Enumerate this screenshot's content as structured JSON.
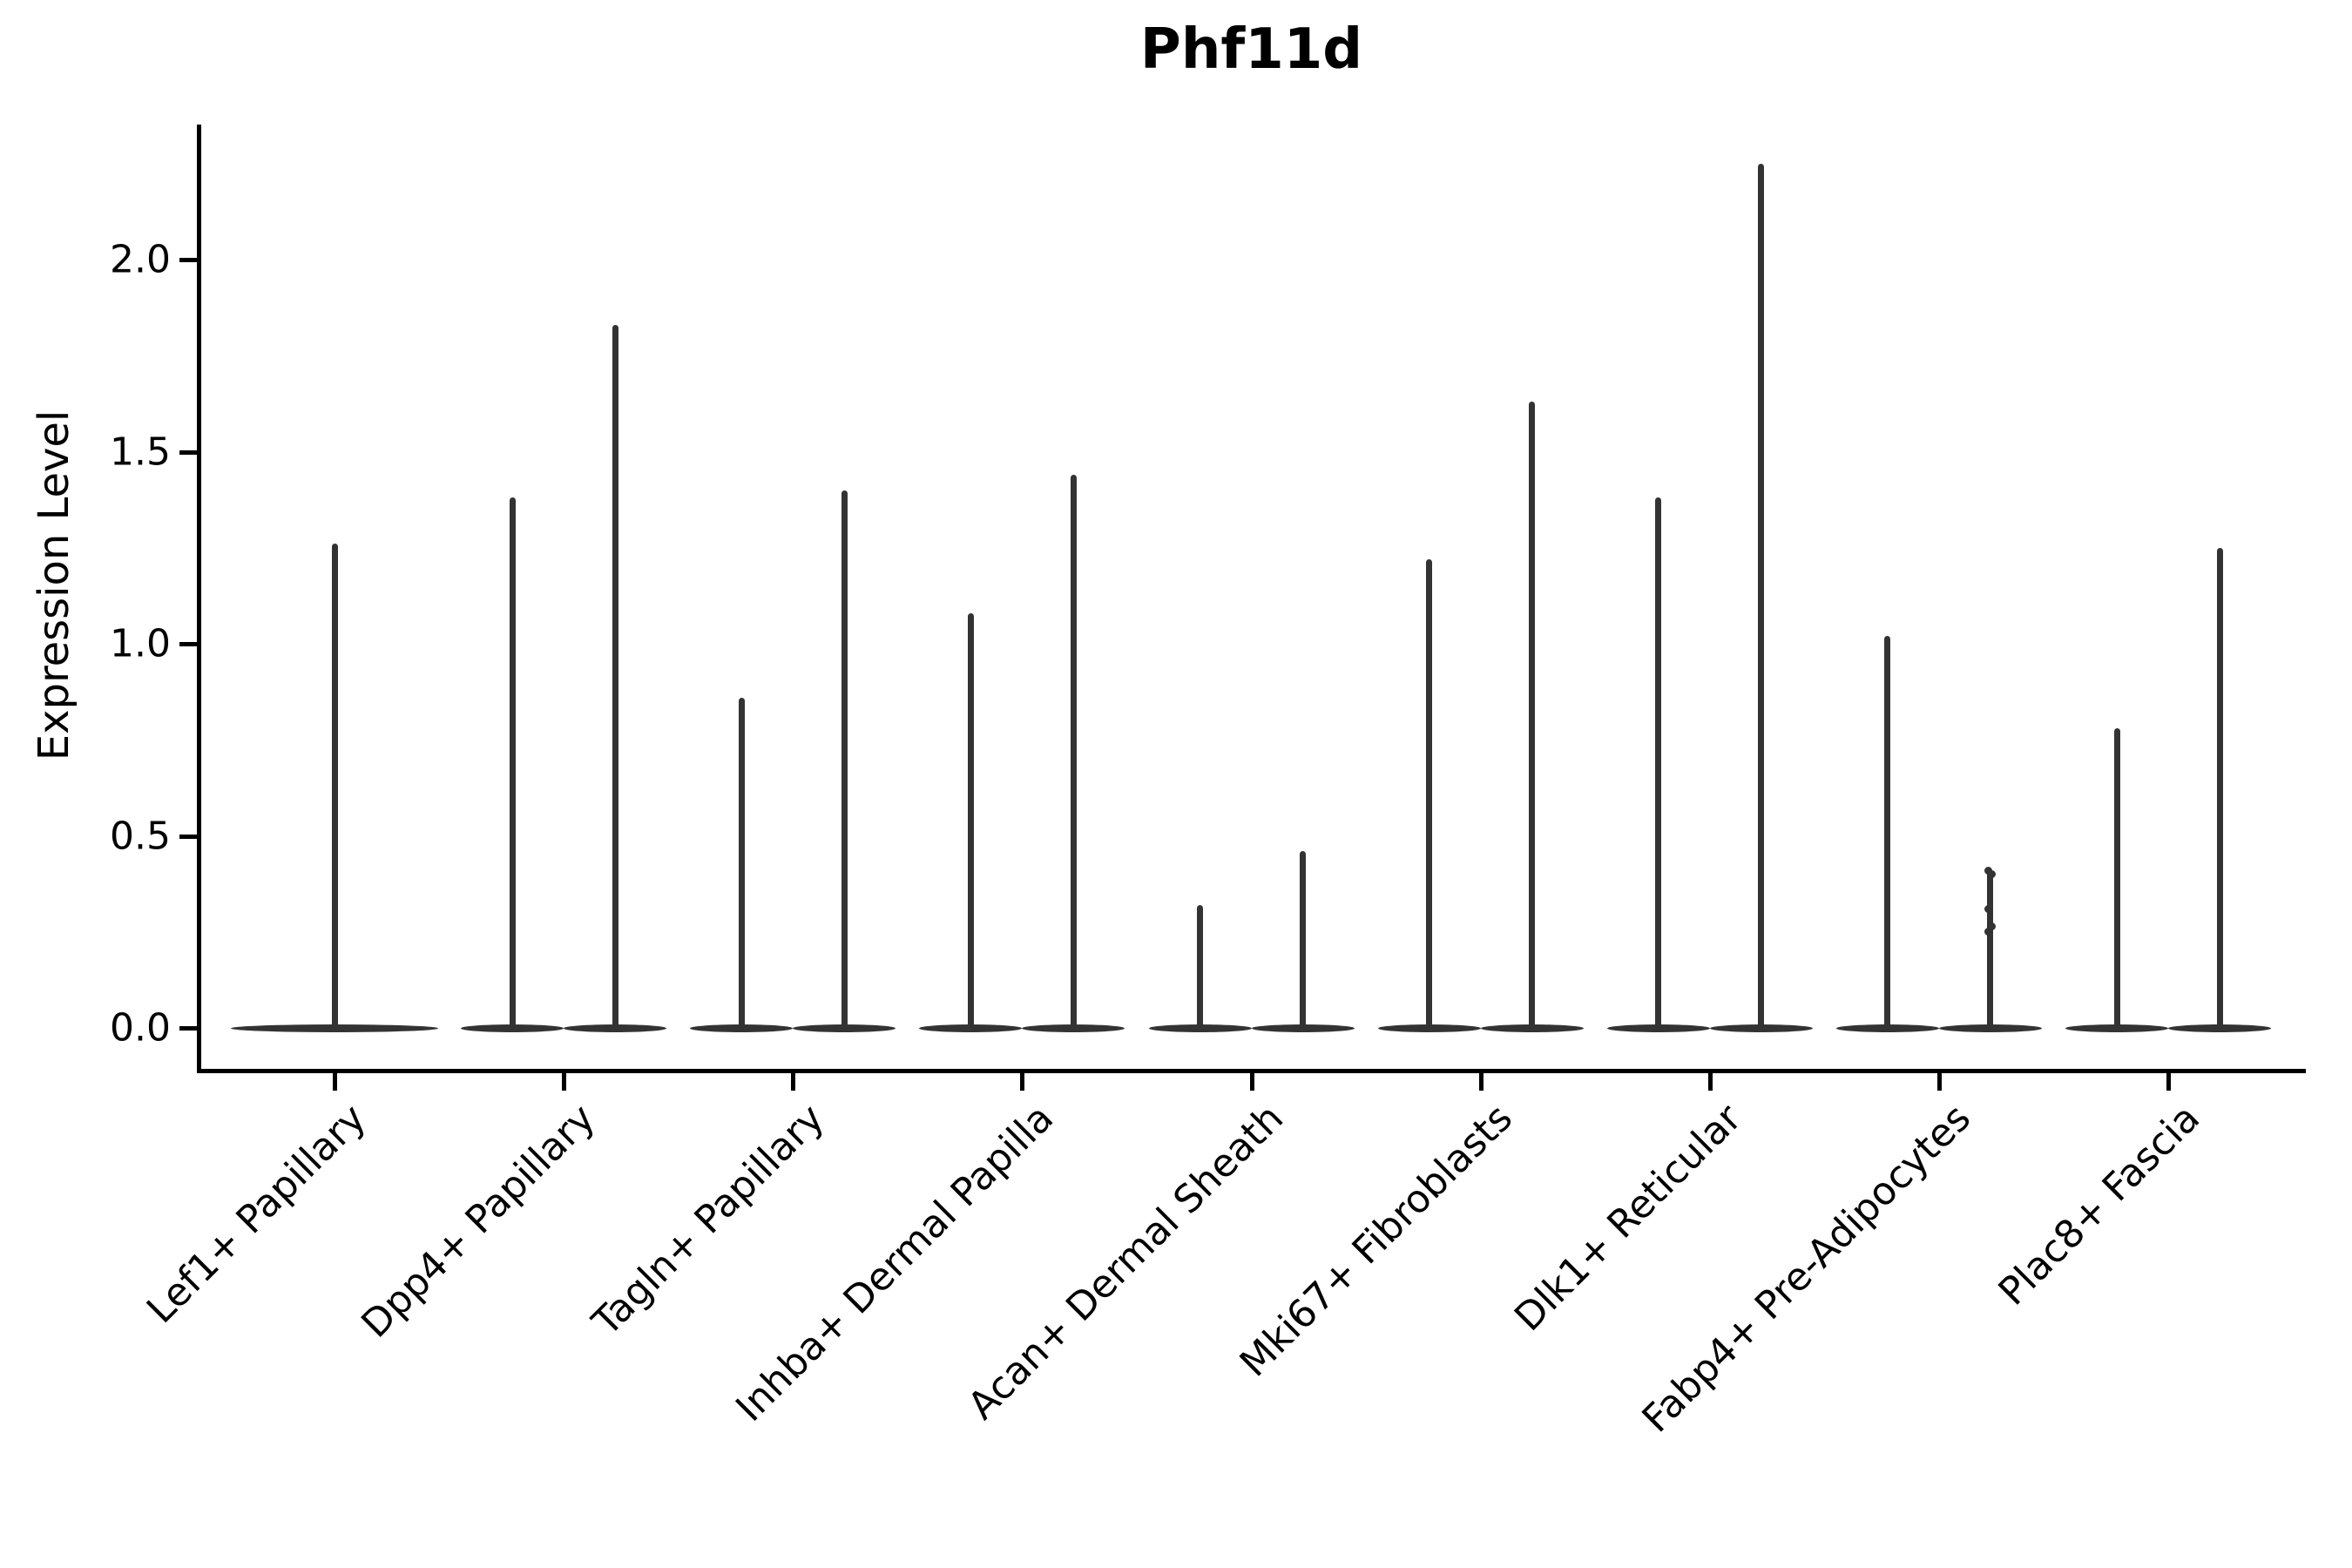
{
  "figure": {
    "title": "Phf11d",
    "ylabel": "Expression Level",
    "background": "#ffffff"
  },
  "colors": {
    "violin": "#333333",
    "axis": "#000000",
    "text": "#000000"
  },
  "chart_data": {
    "type": "violin",
    "title": "Phf11d",
    "xlabel": "",
    "ylabel": "Expression Level",
    "ylim": [
      -0.11,
      2.36
    ],
    "yticks": [
      0.0,
      0.5,
      1.0,
      1.5,
      2.0
    ],
    "ytick_labels": [
      "0.0",
      "0.5",
      "1.0",
      "1.5",
      "2.0"
    ],
    "grid": false,
    "legend_position": "none",
    "x_label_rotation": 45,
    "description": "Single-cell expression violin plot; each violin is a flat dense base at 0 with a thin spike rising to the maximum expression value",
    "categories": [
      "Lef1+ Papillary",
      "Dpp4+ Papillary",
      "Tagln+ Papillary",
      "Inhba+ Dermal Papilla",
      "Acan+ Dermal Sheath",
      "Mki67+ Fibroblasts",
      "Dlk1+ Reticular",
      "Fabp4+ Pre-Adipocytes",
      "Plac8+ Fascia"
    ],
    "violins": [
      {
        "category": "Lef1+ Papillary",
        "split": false,
        "maxima": [
          1.26
        ]
      },
      {
        "category": "Dpp4+ Papillary",
        "split": true,
        "maxima": [
          1.38,
          1.83
        ]
      },
      {
        "category": "Tagln+ Papillary",
        "split": true,
        "maxima": [
          0.86,
          1.4
        ]
      },
      {
        "category": "Inhba+ Dermal Papilla",
        "split": true,
        "maxima": [
          1.08,
          1.44
        ]
      },
      {
        "category": "Acan+ Dermal Sheath",
        "split": true,
        "maxima": [
          0.32,
          0.46
        ]
      },
      {
        "category": "Mki67+ Fibroblasts",
        "split": true,
        "maxima": [
          1.22,
          1.63
        ]
      },
      {
        "category": "Dlk1+ Reticular",
        "split": true,
        "maxima": [
          1.38,
          2.25
        ]
      },
      {
        "category": "Fabp4+ Pre-Adipocytes",
        "split": true,
        "maxima": [
          1.02,
          0.41
        ],
        "jitter_points": [
          [],
          [
            0.41,
            0.4,
            0.31,
            0.265,
            0.25
          ]
        ]
      },
      {
        "category": "Plac8+ Fascia",
        "split": true,
        "maxima": [
          0.78,
          1.25
        ]
      }
    ]
  }
}
